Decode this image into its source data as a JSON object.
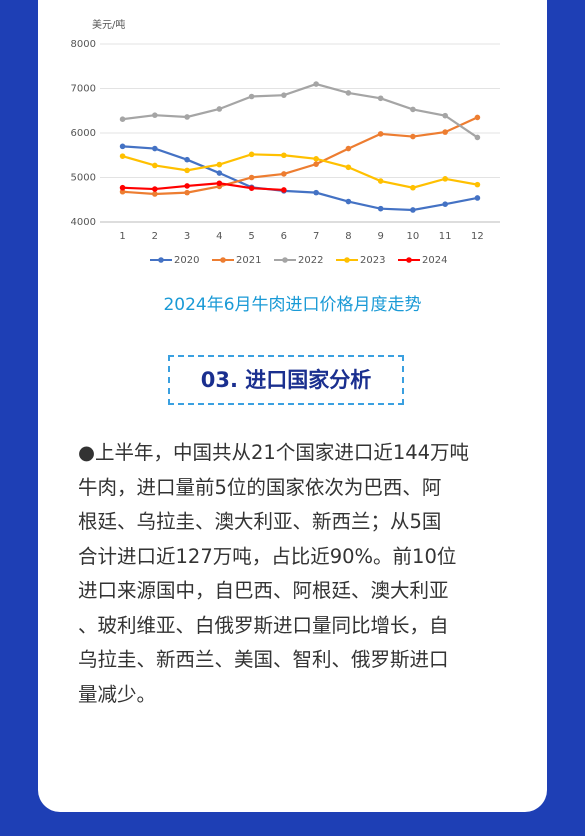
{
  "chart_data": {
    "type": "line",
    "y_label": "美元/吨",
    "x": [
      1,
      2,
      3,
      4,
      5,
      6,
      7,
      8,
      9,
      10,
      11,
      12
    ],
    "xlim": [
      0.3,
      12.7
    ],
    "xticks": [
      1,
      2,
      3,
      4,
      5,
      6,
      7,
      8,
      9,
      10,
      11,
      12
    ],
    "ylim": [
      4000,
      8000
    ],
    "yticks": [
      4000,
      5000,
      6000,
      7000,
      8000
    ],
    "grid": true,
    "series": [
      {
        "name": "2020",
        "color": "#4472c4",
        "values": [
          5700,
          5650,
          5400,
          5100,
          4780,
          4700,
          4660,
          4460,
          4300,
          4270,
          4400,
          4540
        ]
      },
      {
        "name": "2021",
        "color": "#ed7d31",
        "values": [
          4680,
          4630,
          4660,
          4800,
          5000,
          5080,
          5300,
          5650,
          5980,
          5920,
          6020,
          6350
        ]
      },
      {
        "name": "2022",
        "color": "#a5a5a5",
        "values": [
          6310,
          6400,
          6360,
          6540,
          6820,
          6850,
          7100,
          6900,
          6780,
          6530,
          6390,
          5900
        ]
      },
      {
        "name": "2023",
        "color": "#ffc000",
        "values": [
          5480,
          5270,
          5160,
          5290,
          5520,
          5500,
          5420,
          5230,
          4920,
          4770,
          4970,
          4840
        ]
      },
      {
        "name": "2024",
        "color": "#ff0000",
        "values": [
          4770,
          4740,
          4810,
          4870,
          4760,
          4720,
          null,
          null,
          null,
          null,
          null,
          null
        ]
      }
    ]
  },
  "caption": "2024年6月牛肉进口价格月度走势",
  "heading": "03. 进口国家分析",
  "paragraph": [
    "●上半年，中国共从21个国家进口近144万吨",
    "牛肉，进口量前5位的国家依次为巴西、阿",
    "根廷、乌拉圭、澳大利亚、新西兰；从5国",
    "合计进口近127万吨，占比近90%。前10位",
    "进口来源国中，自巴西、阿根廷、澳大利亚",
    "、玻利维亚、白俄罗斯进口量同比增长，自",
    "乌拉圭、新西兰、美国、智利、俄罗斯进口",
    "量减少。"
  ]
}
